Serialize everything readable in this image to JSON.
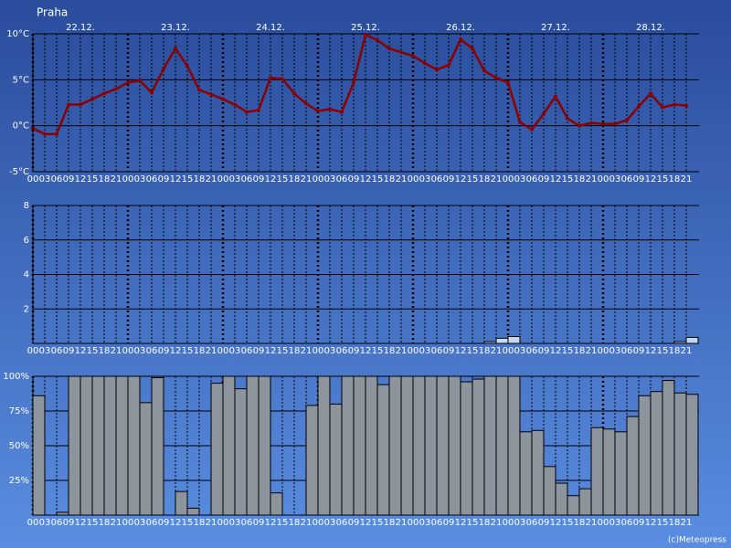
{
  "title": "Praha",
  "days": [
    "22.12.",
    "23.12.",
    "24.12.",
    "25.12.",
    "26.12.",
    "27.12.",
    "28.12."
  ],
  "credit": "(c)Meteopress",
  "chart_data": [
    {
      "type": "line",
      "color": "#8b0000",
      "grid": true,
      "categories": [
        "00",
        "03",
        "06",
        "09",
        "12",
        "15",
        "18",
        "21",
        "00",
        "03",
        "06",
        "09",
        "12",
        "15",
        "18",
        "21",
        "00",
        "03",
        "06",
        "09",
        "12",
        "15",
        "18",
        "21",
        "00",
        "03",
        "06",
        "09",
        "12",
        "15",
        "18",
        "21",
        "00",
        "03",
        "06",
        "09",
        "12",
        "15",
        "18",
        "21",
        "00",
        "03",
        "06",
        "09",
        "12",
        "15",
        "18",
        "21",
        "00",
        "03",
        "06",
        "09",
        "12",
        "15",
        "18",
        "21"
      ],
      "values": [
        -0.3,
        -0.9,
        -0.9,
        2.3,
        2.3,
        2.9,
        3.5,
        4.0,
        4.7,
        4.9,
        3.6,
        6.2,
        8.4,
        6.5,
        3.9,
        3.4,
        2.9,
        2.3,
        1.5,
        1.7,
        5.2,
        5.1,
        3.5,
        2.4,
        1.6,
        1.8,
        1.5,
        4.7,
        9.9,
        9.3,
        8.4,
        8.0,
        7.6,
        6.8,
        6.1,
        6.6,
        9.4,
        8.4,
        6.0,
        5.2,
        4.7,
        0.4,
        -0.4,
        1.3,
        3.2,
        0.8,
        0,
        0.3,
        0.2,
        0.2,
        0.6,
        2.1,
        3.5,
        2.0,
        2.3,
        2.2
      ],
      "ylim": [
        -5,
        10
      ],
      "yticks": [
        {
          "value": -5,
          "label": "-5°C"
        },
        {
          "value": 0,
          "label": "0°C"
        },
        {
          "value": 5,
          "label": "5°C"
        },
        {
          "value": 10,
          "label": "10°C"
        }
      ]
    },
    {
      "type": "bar",
      "color": "#c4d6f2",
      "grid": true,
      "categories": [
        "00",
        "03",
        "06",
        "09",
        "12",
        "15",
        "18",
        "21",
        "00",
        "03",
        "06",
        "09",
        "12",
        "15",
        "18",
        "21",
        "00",
        "03",
        "06",
        "09",
        "12",
        "15",
        "18",
        "21",
        "00",
        "03",
        "06",
        "09",
        "12",
        "15",
        "18",
        "21",
        "00",
        "03",
        "06",
        "09",
        "12",
        "15",
        "18",
        "21",
        "00",
        "03",
        "06",
        "09",
        "12",
        "15",
        "18",
        "21",
        "00",
        "03",
        "06",
        "09",
        "12",
        "15",
        "18",
        "21"
      ],
      "values": [
        0,
        0,
        0,
        0,
        0,
        0,
        0,
        0,
        0,
        0,
        0,
        0,
        0,
        0,
        0,
        0,
        0,
        0,
        0,
        0,
        0,
        0,
        0,
        0,
        0,
        0,
        0,
        0,
        0,
        0,
        0,
        0,
        0,
        0,
        0,
        0,
        0,
        0,
        0.1,
        0.3,
        0.4,
        0,
        0,
        0,
        0,
        0,
        0,
        0,
        0,
        0,
        0,
        0,
        0,
        0,
        0.1,
        0.35
      ],
      "ylim": [
        0,
        8
      ],
      "yticks": [
        2,
        4,
        6,
        8
      ]
    },
    {
      "type": "bar",
      "color": "#8c949e",
      "grid": true,
      "categories": [
        "00",
        "03",
        "06",
        "09",
        "12",
        "15",
        "18",
        "21",
        "00",
        "03",
        "06",
        "09",
        "12",
        "15",
        "18",
        "21",
        "00",
        "03",
        "06",
        "09",
        "12",
        "15",
        "18",
        "21",
        "00",
        "03",
        "06",
        "09",
        "12",
        "15",
        "18",
        "21",
        "00",
        "03",
        "06",
        "09",
        "12",
        "15",
        "18",
        "21",
        "00",
        "03",
        "06",
        "09",
        "12",
        "15",
        "18",
        "21",
        "00",
        "03",
        "06",
        "09",
        "12",
        "15",
        "18",
        "21"
      ],
      "values": [
        86,
        0,
        2,
        100,
        100,
        100,
        100,
        100,
        100,
        81,
        99,
        0,
        17,
        5,
        0,
        95,
        100,
        91,
        100,
        100,
        16,
        0,
        0,
        79,
        100,
        80,
        100,
        100,
        100,
        94,
        100,
        100,
        100,
        100,
        100,
        100,
        96,
        98,
        100,
        100,
        100,
        60,
        61,
        35,
        23,
        14,
        19,
        63,
        62,
        60,
        71,
        86,
        89,
        97,
        88,
        87
      ],
      "ylim": [
        0,
        100
      ],
      "yticks": [
        {
          "value": 25,
          "label": "25%"
        },
        {
          "value": 50,
          "label": "50%"
        },
        {
          "value": 75,
          "label": "75%"
        },
        {
          "value": 100,
          "label": "100%"
        }
      ]
    }
  ]
}
